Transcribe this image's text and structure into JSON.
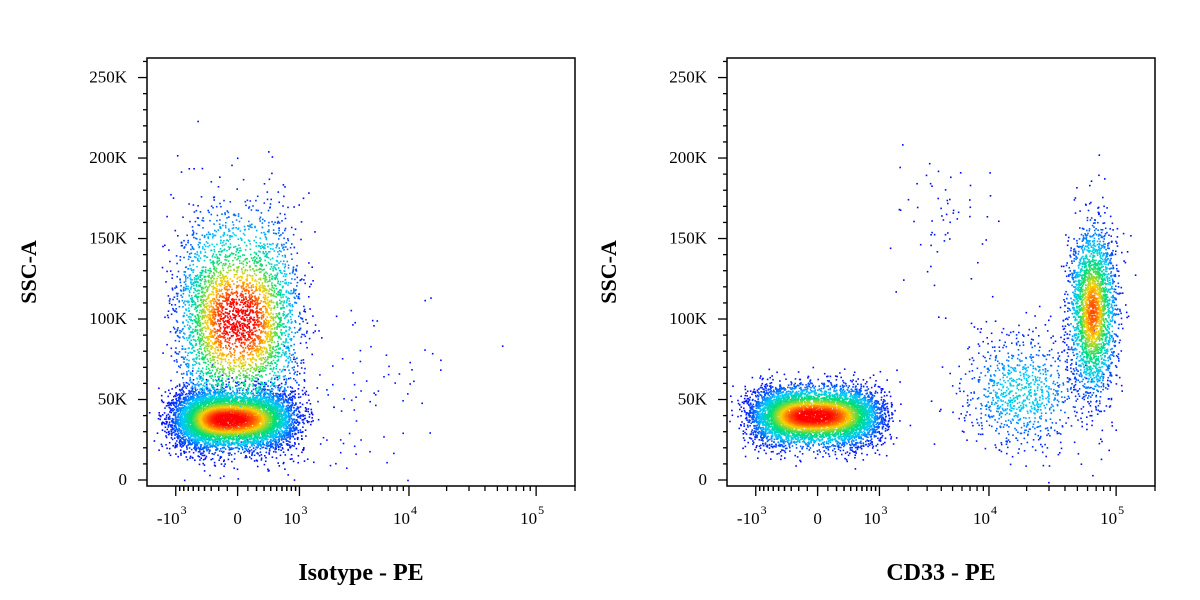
{
  "chart_data": [
    {
      "type": "scatter",
      "title": "",
      "xlabel": "Isotype - PE",
      "ylabel": "SSC-A",
      "x_scale": "biexponential",
      "xlim": [
        -2000,
        200000
      ],
      "ylim": [
        0,
        262144
      ],
      "x_ticks": [
        {
          "value": -1000,
          "base": "-10",
          "exp": "3"
        },
        {
          "value": 0,
          "base": "0",
          "exp": ""
        },
        {
          "value": 1000,
          "base": "10",
          "exp": "3"
        },
        {
          "value": 10000,
          "base": "10",
          "exp": "4"
        },
        {
          "value": 100000,
          "base": "10",
          "exp": "5"
        }
      ],
      "y_ticks": [
        {
          "value": 0,
          "label": "0"
        },
        {
          "value": 50000,
          "label": "50K"
        },
        {
          "value": 100000,
          "label": "100K"
        },
        {
          "value": 150000,
          "label": "150K"
        },
        {
          "value": 200000,
          "label": "200K"
        },
        {
          "value": 250000,
          "label": "250K"
        }
      ],
      "populations": [
        {
          "x_center": -100,
          "y_center": 38000,
          "x_spread": 450,
          "y_spread": 9000,
          "count": 7000
        },
        {
          "x_center": 0,
          "y_center": 100000,
          "x_spread": 450,
          "y_spread": 32000,
          "count": 3800
        },
        {
          "x_center": 3000,
          "y_center": 50000,
          "x_spread": 0.45,
          "y_spread": 30000,
          "count": 110,
          "log": true
        }
      ],
      "colormap": [
        "#0000ff",
        "#00c8ff",
        "#00e070",
        "#ffd000",
        "#ff0000"
      ]
    },
    {
      "type": "scatter",
      "title": "",
      "xlabel": "CD33 - PE",
      "ylabel": "SSC-A",
      "x_scale": "biexponential",
      "xlim": [
        -2000,
        200000
      ],
      "ylim": [
        0,
        262144
      ],
      "x_ticks": [
        {
          "value": -1000,
          "base": "-10",
          "exp": "3"
        },
        {
          "value": 0,
          "base": "0",
          "exp": ""
        },
        {
          "value": 1000,
          "base": "10",
          "exp": "3"
        },
        {
          "value": 10000,
          "base": "10",
          "exp": "4"
        },
        {
          "value": 100000,
          "base": "10",
          "exp": "5"
        }
      ],
      "y_ticks": [
        {
          "value": 0,
          "label": "0"
        },
        {
          "value": 50000,
          "label": "50K"
        },
        {
          "value": 100000,
          "label": "100K"
        },
        {
          "value": 150000,
          "label": "150K"
        },
        {
          "value": 200000,
          "label": "200K"
        },
        {
          "value": 250000,
          "label": "250K"
        }
      ],
      "populations": [
        {
          "x_center": -50,
          "y_center": 40000,
          "x_spread": 500,
          "y_spread": 9000,
          "count": 6500
        },
        {
          "x_center": 65000,
          "y_center": 105000,
          "x_spread": 0.09,
          "y_spread": 26000,
          "count": 2600,
          "log": true
        },
        {
          "x_center": 18000,
          "y_center": 55000,
          "x_spread": 0.25,
          "y_spread": 18000,
          "count": 900,
          "log": true
        },
        {
          "x_center": 4000,
          "y_center": 160000,
          "x_spread": 0.2,
          "y_spread": 20000,
          "count": 60,
          "log": true
        }
      ],
      "colormap": [
        "#0000ff",
        "#00c8ff",
        "#00e070",
        "#ffd000",
        "#ff0000"
      ]
    }
  ]
}
